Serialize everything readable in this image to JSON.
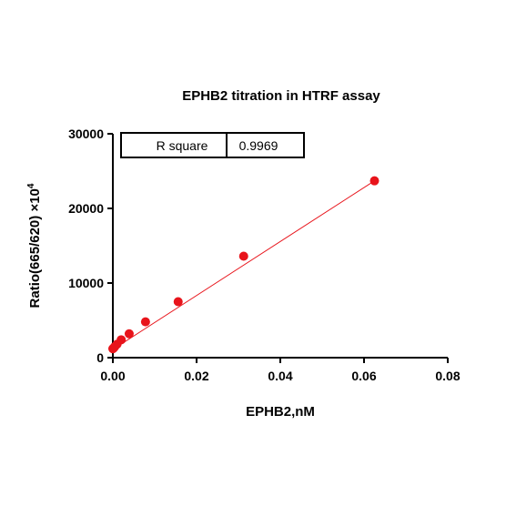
{
  "chart_data": {
    "type": "scatter",
    "title": "EPHB2 titration in HTRF assay",
    "xlabel": "EPHB2,nM",
    "ylabel_main": "Ratio(665/620) ×10",
    "ylabel_exp": "4",
    "xlim": [
      0,
      0.08
    ],
    "ylim": [
      0,
      30000
    ],
    "xticks": [
      0,
      0.02,
      0.04,
      0.06,
      0.08
    ],
    "xtick_labels": [
      "0.00",
      "0.02",
      "0.04",
      "0.06",
      "0.08"
    ],
    "yticks": [
      0,
      10000,
      20000,
      30000
    ],
    "ytick_labels": [
      "0",
      "10000",
      "20000",
      "30000"
    ],
    "series": [
      {
        "color": "#e8141b",
        "x": [
          0,
          0.0002,
          0.0005,
          0.001,
          0.002,
          0.0039,
          0.0078,
          0.0156,
          0.03125,
          0.0625
        ],
        "y": [
          1200,
          1300,
          1500,
          1800,
          2400,
          3200,
          4800,
          7500,
          13600,
          23700
        ]
      }
    ],
    "fit": {
      "type": "linear",
      "x": [
        0,
        0.0625
      ],
      "y": [
        1100,
        23700
      ],
      "color": "#e8141b"
    },
    "r_square_table": {
      "label": "R square",
      "value": "0.9969"
    }
  }
}
